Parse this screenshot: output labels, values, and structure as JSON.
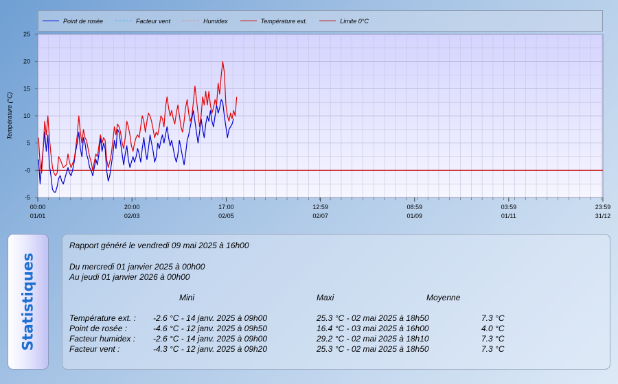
{
  "colors": {
    "dew_point": "#0000cc",
    "wind_factor": "#3fb7e0",
    "humidex": "#f08080",
    "ext_temp": "#e00000",
    "limit_0": "#c00000"
  },
  "legend": {
    "dew_point": "Point de rosée",
    "wind_factor": "Facteur vent",
    "humidex": "Humidex",
    "ext_temp": "Température ext.",
    "limit_0": "Limite 0°C"
  },
  "chart_data": {
    "type": "line",
    "ylabel": "Température (°C)",
    "ylim": [
      -5,
      25
    ],
    "y_ticks": [
      "25",
      "20",
      "15",
      "10",
      "5",
      "-0",
      "-5"
    ],
    "x_range": [
      "2025-01-01T00:00",
      "2025-12-31T23:59"
    ],
    "x_ticks": [
      {
        "time": "00:00",
        "date": "01/01",
        "at": "2025-01-01T00:00"
      },
      {
        "time": "20:00",
        "date": "02/03",
        "at": "2025-03-02T20:00"
      },
      {
        "time": "17:00",
        "date": "02/05",
        "at": "2025-05-02T17:00"
      },
      {
        "time": "12:59",
        "date": "02/07",
        "at": "2025-07-02T12:59"
      },
      {
        "time": "08:59",
        "date": "01/09",
        "at": "2025-09-01T08:59"
      },
      {
        "time": "03:59",
        "date": "01/11",
        "at": "2025-11-01T03:59"
      },
      {
        "time": "23:59",
        "date": "31/12",
        "at": "2025-12-31T23:59"
      }
    ],
    "grid": true,
    "legend_position": "top",
    "limit_line": 0,
    "series": [
      {
        "name": "Température ext.",
        "points": [
          [
            "2025-01-01",
            6.0
          ],
          [
            "2025-01-02",
            1.0
          ],
          [
            "2025-01-03",
            -0.5
          ],
          [
            "2025-01-04",
            4.0
          ],
          [
            "2025-01-05",
            9.0
          ],
          [
            "2025-01-06",
            6.5
          ],
          [
            "2025-01-07",
            10.0
          ],
          [
            "2025-01-08",
            6.0
          ],
          [
            "2025-01-09",
            3.0
          ],
          [
            "2025-01-10",
            0.5
          ],
          [
            "2025-01-11",
            -0.5
          ],
          [
            "2025-01-12",
            -1.0
          ],
          [
            "2025-01-13",
            -0.5
          ],
          [
            "2025-01-14",
            2.5
          ],
          [
            "2025-01-15",
            2.0
          ],
          [
            "2025-01-17",
            0.5
          ],
          [
            "2025-01-19",
            1.0
          ],
          [
            "2025-01-20",
            3.0
          ],
          [
            "2025-01-21",
            1.5
          ],
          [
            "2025-01-22",
            0.5
          ],
          [
            "2025-01-24",
            2.0
          ],
          [
            "2025-01-25",
            4.0
          ],
          [
            "2025-01-26",
            6.5
          ],
          [
            "2025-01-27",
            10.0
          ],
          [
            "2025-01-28",
            7.0
          ],
          [
            "2025-01-29",
            5.0
          ],
          [
            "2025-01-30",
            7.5
          ],
          [
            "2025-01-31",
            6.0
          ],
          [
            "2025-02-01",
            5.5
          ],
          [
            "2025-02-02",
            4.0
          ],
          [
            "2025-02-03",
            2.5
          ],
          [
            "2025-02-04",
            1.5
          ],
          [
            "2025-02-05",
            0.0
          ],
          [
            "2025-02-06",
            1.5
          ],
          [
            "2025-02-07",
            3.0
          ],
          [
            "2025-02-08",
            2.5
          ],
          [
            "2025-02-09",
            4.5
          ],
          [
            "2025-02-10",
            6.5
          ],
          [
            "2025-02-11",
            5.0
          ],
          [
            "2025-02-12",
            6.0
          ],
          [
            "2025-02-13",
            5.5
          ],
          [
            "2025-02-14",
            2.0
          ],
          [
            "2025-02-15",
            0.5
          ],
          [
            "2025-02-16",
            1.5
          ],
          [
            "2025-02-17",
            3.0
          ],
          [
            "2025-02-18",
            5.5
          ],
          [
            "2025-02-19",
            8.0
          ],
          [
            "2025-02-20",
            6.5
          ],
          [
            "2025-02-21",
            8.5
          ],
          [
            "2025-02-22",
            8.0
          ],
          [
            "2025-02-23",
            7.0
          ],
          [
            "2025-02-24",
            5.0
          ],
          [
            "2025-02-25",
            4.0
          ],
          [
            "2025-02-26",
            6.0
          ],
          [
            "2025-02-27",
            9.0
          ],
          [
            "2025-02-28",
            8.0
          ],
          [
            "2025-03-01",
            6.5
          ],
          [
            "2025-03-02",
            4.5
          ],
          [
            "2025-03-03",
            3.5
          ],
          [
            "2025-03-04",
            5.0
          ],
          [
            "2025-03-05",
            6.0
          ],
          [
            "2025-03-06",
            6.5
          ],
          [
            "2025-03-07",
            6.0
          ],
          [
            "2025-03-08",
            8.0
          ],
          [
            "2025-03-09",
            10.0
          ],
          [
            "2025-03-10",
            9.0
          ],
          [
            "2025-03-11",
            7.0
          ],
          [
            "2025-03-12",
            9.0
          ],
          [
            "2025-03-13",
            10.5
          ],
          [
            "2025-03-14",
            10.0
          ],
          [
            "2025-03-15",
            9.0
          ],
          [
            "2025-03-16",
            7.5
          ],
          [
            "2025-03-17",
            6.0
          ],
          [
            "2025-03-18",
            7.0
          ],
          [
            "2025-03-19",
            6.5
          ],
          [
            "2025-03-20",
            8.0
          ],
          [
            "2025-03-21",
            10.0
          ],
          [
            "2025-03-22",
            9.5
          ],
          [
            "2025-03-23",
            8.0
          ],
          [
            "2025-03-24",
            11.5
          ],
          [
            "2025-03-25",
            13.5
          ],
          [
            "2025-03-26",
            11.5
          ],
          [
            "2025-03-27",
            10.0
          ],
          [
            "2025-03-28",
            11.0
          ],
          [
            "2025-03-29",
            9.5
          ],
          [
            "2025-03-30",
            8.5
          ],
          [
            "2025-03-31",
            10.5
          ],
          [
            "2025-04-01",
            12.0
          ],
          [
            "2025-04-02",
            10.0
          ],
          [
            "2025-04-03",
            8.0
          ],
          [
            "2025-04-04",
            7.0
          ],
          [
            "2025-04-05",
            9.0
          ],
          [
            "2025-04-06",
            11.5
          ],
          [
            "2025-04-07",
            13.0
          ],
          [
            "2025-04-08",
            10.5
          ],
          [
            "2025-04-09",
            9.0
          ],
          [
            "2025-04-10",
            10.0
          ],
          [
            "2025-04-11",
            12.5
          ],
          [
            "2025-04-12",
            15.5
          ],
          [
            "2025-04-13",
            13.0
          ],
          [
            "2025-04-14",
            10.5
          ],
          [
            "2025-04-15",
            8.0
          ],
          [
            "2025-04-16",
            10.0
          ],
          [
            "2025-04-17",
            13.5
          ],
          [
            "2025-04-18",
            12.0
          ],
          [
            "2025-04-19",
            14.5
          ],
          [
            "2025-04-20",
            12.0
          ],
          [
            "2025-04-21",
            14.5
          ],
          [
            "2025-04-22",
            12.0
          ],
          [
            "2025-04-23",
            10.5
          ],
          [
            "2025-04-24",
            11.5
          ],
          [
            "2025-04-25",
            13.0
          ],
          [
            "2025-04-26",
            12.0
          ],
          [
            "2025-04-27",
            16.0
          ],
          [
            "2025-04-28",
            14.0
          ],
          [
            "2025-04-29",
            17.5
          ],
          [
            "2025-04-30",
            20.0
          ],
          [
            "2025-05-01",
            18.0
          ],
          [
            "2025-05-02",
            12.0
          ],
          [
            "2025-05-03",
            10.0
          ],
          [
            "2025-05-04",
            9.0
          ],
          [
            "2025-05-05",
            10.5
          ],
          [
            "2025-05-06",
            9.5
          ],
          [
            "2025-05-07",
            11.0
          ],
          [
            "2025-05-08",
            10.0
          ],
          [
            "2025-05-09",
            13.5
          ]
        ]
      },
      {
        "name": "Point de rosée",
        "points": [
          [
            "2025-01-01",
            2.0
          ],
          [
            "2025-01-02",
            -2.5
          ],
          [
            "2025-01-03",
            1.0
          ],
          [
            "2025-01-04",
            4.0
          ],
          [
            "2025-01-05",
            7.0
          ],
          [
            "2025-01-06",
            3.5
          ],
          [
            "2025-01-07",
            6.5
          ],
          [
            "2025-01-08",
            1.0
          ],
          [
            "2025-01-09",
            -1.0
          ],
          [
            "2025-01-10",
            -3.5
          ],
          [
            "2025-01-11",
            -4.0
          ],
          [
            "2025-01-12",
            -4.0
          ],
          [
            "2025-01-13",
            -3.0
          ],
          [
            "2025-01-14",
            -1.5
          ],
          [
            "2025-01-15",
            -1.0
          ],
          [
            "2025-01-16",
            -2.0
          ],
          [
            "2025-01-17",
            -2.5
          ],
          [
            "2025-01-18",
            -1.5
          ],
          [
            "2025-01-19",
            -0.5
          ],
          [
            "2025-01-20",
            0.5
          ],
          [
            "2025-01-21",
            -0.5
          ],
          [
            "2025-01-22",
            -1.0
          ],
          [
            "2025-01-23",
            0.0
          ],
          [
            "2025-01-24",
            1.5
          ],
          [
            "2025-01-25",
            3.5
          ],
          [
            "2025-01-26",
            5.0
          ],
          [
            "2025-01-27",
            7.0
          ],
          [
            "2025-01-28",
            4.0
          ],
          [
            "2025-01-29",
            2.5
          ],
          [
            "2025-01-30",
            6.0
          ],
          [
            "2025-01-31",
            5.0
          ],
          [
            "2025-02-01",
            3.0
          ],
          [
            "2025-02-02",
            2.0
          ],
          [
            "2025-02-03",
            0.5
          ],
          [
            "2025-02-04",
            0.0
          ],
          [
            "2025-02-05",
            -1.0
          ],
          [
            "2025-02-06",
            0.5
          ],
          [
            "2025-02-07",
            2.0
          ],
          [
            "2025-02-08",
            1.0
          ],
          [
            "2025-02-09",
            3.0
          ],
          [
            "2025-02-10",
            6.0
          ],
          [
            "2025-02-11",
            3.5
          ],
          [
            "2025-02-12",
            5.0
          ],
          [
            "2025-02-13",
            4.0
          ],
          [
            "2025-02-14",
            0.0
          ],
          [
            "2025-02-15",
            -2.0
          ],
          [
            "2025-02-16",
            -1.0
          ],
          [
            "2025-02-17",
            1.0
          ],
          [
            "2025-02-18",
            3.0
          ],
          [
            "2025-02-19",
            5.5
          ],
          [
            "2025-02-20",
            4.0
          ],
          [
            "2025-02-21",
            7.5
          ],
          [
            "2025-02-22",
            7.0
          ],
          [
            "2025-02-23",
            5.0
          ],
          [
            "2025-02-24",
            3.0
          ],
          [
            "2025-02-25",
            1.0
          ],
          [
            "2025-02-26",
            3.0
          ],
          [
            "2025-02-27",
            4.5
          ],
          [
            "2025-02-28",
            2.0
          ],
          [
            "2025-03-01",
            0.5
          ],
          [
            "2025-03-02",
            1.5
          ],
          [
            "2025-03-03",
            2.5
          ],
          [
            "2025-03-04",
            1.5
          ],
          [
            "2025-03-05",
            2.5
          ],
          [
            "2025-03-06",
            4.0
          ],
          [
            "2025-03-07",
            3.0
          ],
          [
            "2025-03-08",
            1.5
          ],
          [
            "2025-03-09",
            4.0
          ],
          [
            "2025-03-10",
            6.0
          ],
          [
            "2025-03-11",
            3.5
          ],
          [
            "2025-03-12",
            2.0
          ],
          [
            "2025-03-13",
            4.0
          ],
          [
            "2025-03-14",
            6.5
          ],
          [
            "2025-03-15",
            5.0
          ],
          [
            "2025-03-16",
            3.5
          ],
          [
            "2025-03-17",
            1.5
          ],
          [
            "2025-03-18",
            2.5
          ],
          [
            "2025-03-19",
            5.0
          ],
          [
            "2025-03-20",
            4.0
          ],
          [
            "2025-03-21",
            5.5
          ],
          [
            "2025-03-22",
            6.5
          ],
          [
            "2025-03-23",
            5.0
          ],
          [
            "2025-03-24",
            6.5
          ],
          [
            "2025-03-25",
            8.0
          ],
          [
            "2025-03-26",
            6.0
          ],
          [
            "2025-03-27",
            4.5
          ],
          [
            "2025-03-28",
            5.5
          ],
          [
            "2025-03-29",
            4.0
          ],
          [
            "2025-03-30",
            2.5
          ],
          [
            "2025-03-31",
            1.5
          ],
          [
            "2025-04-01",
            3.0
          ],
          [
            "2025-04-02",
            5.5
          ],
          [
            "2025-04-03",
            4.0
          ],
          [
            "2025-04-04",
            2.5
          ],
          [
            "2025-04-05",
            1.0
          ],
          [
            "2025-04-06",
            3.0
          ],
          [
            "2025-04-07",
            5.5
          ],
          [
            "2025-04-08",
            6.5
          ],
          [
            "2025-04-09",
            8.0
          ],
          [
            "2025-04-10",
            9.5
          ],
          [
            "2025-04-11",
            11.0
          ],
          [
            "2025-04-12",
            9.0
          ],
          [
            "2025-04-13",
            7.0
          ],
          [
            "2025-04-14",
            5.0
          ],
          [
            "2025-04-15",
            7.0
          ],
          [
            "2025-04-16",
            9.5
          ],
          [
            "2025-04-17",
            7.5
          ],
          [
            "2025-04-18",
            6.0
          ],
          [
            "2025-04-19",
            8.5
          ],
          [
            "2025-04-20",
            10.0
          ],
          [
            "2025-04-21",
            9.0
          ],
          [
            "2025-04-22",
            11.0
          ],
          [
            "2025-04-23",
            9.0
          ],
          [
            "2025-04-24",
            8.0
          ],
          [
            "2025-04-25",
            10.0
          ],
          [
            "2025-04-26",
            12.0
          ],
          [
            "2025-04-27",
            10.5
          ],
          [
            "2025-04-28",
            11.5
          ],
          [
            "2025-04-29",
            13.0
          ],
          [
            "2025-04-30",
            12.5
          ],
          [
            "2025-05-01",
            10.0
          ],
          [
            "2025-05-02",
            8.0
          ],
          [
            "2025-05-03",
            6.0
          ],
          [
            "2025-05-04",
            7.5
          ],
          [
            "2025-05-05",
            8.0
          ],
          [
            "2025-05-06",
            8.5
          ],
          [
            "2025-05-07",
            9.5
          ]
        ]
      }
    ]
  },
  "stats": {
    "tab_label": "Statistiques",
    "generated": "Rapport généré le vendredi 09 mai 2025 à 16h00",
    "from": "Du mercredi 01 janvier 2025 à 00h00",
    "to": "Au jeudi 01 janvier 2026 à 00h00",
    "headers": {
      "min": "Mini",
      "max": "Maxi",
      "avg": "Moyenne"
    },
    "rows": [
      {
        "label": "Température ext. :",
        "min": "-2.6 °C - 14 janv. 2025 à 09h00",
        "max": "25.3 °C - 02 mai 2025 à 18h50",
        "avg": "7.3 °C"
      },
      {
        "label": "Point de rosée :",
        "min": "-4.6 °C - 12 janv. 2025 à 09h50",
        "max": "16.4 °C - 03 mai 2025 à 16h00",
        "avg": "4.0 °C"
      },
      {
        "label": "Facteur humidex :",
        "min": "-2.6 °C - 14 janv. 2025 à 09h00",
        "max": "29.2 °C - 02 mai 2025 à 18h10",
        "avg": "7.3 °C"
      },
      {
        "label": "Facteur vent :",
        "min": "-4.3 °C - 12 janv. 2025 à 09h20",
        "max": "25.3 °C - 02 mai 2025 à 18h50",
        "avg": "7.3 °C"
      }
    ]
  }
}
